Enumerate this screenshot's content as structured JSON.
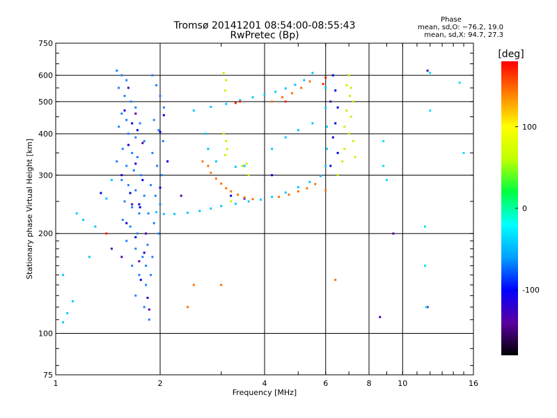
{
  "chart_data": {
    "type": "scatter",
    "title": "Tromsø 20141201 08:54:00-08:55:43",
    "subtitle": "RwPretec (Bp)",
    "xlabel": "Frequency [MHz]",
    "ylabel": "Stationary phase Virtual Height [km]",
    "x_scale": "log",
    "y_scale": "log",
    "xlim": [
      1,
      16
    ],
    "ylim": [
      75,
      750
    ],
    "x_ticks": [
      "1",
      "2",
      "4",
      "6",
      "8",
      "10",
      "16"
    ],
    "y_ticks": [
      "75",
      "100",
      "200",
      "300",
      "400",
      "500",
      "600",
      "750"
    ],
    "grid": true,
    "stats": {
      "heading": "Phase",
      "line_o": "mean, sd,O: −76.2, 19.0",
      "line_x": "mean, sd,X:  94.7, 27.3"
    },
    "colorbar": {
      "unit": "[deg]",
      "range": [
        -180,
        180
      ],
      "ticks": [
        "100",
        "0",
        "-100"
      ],
      "colors": [
        "#000000",
        "#5a00a0",
        "#0000ff",
        "#00a0ff",
        "#00ffff",
        "#00ff40",
        "#c0ff00",
        "#ffff00",
        "#ff8000",
        "#ff0000"
      ]
    },
    "series": [
      {
        "color": "#2080ff",
        "points": [
          [
            1.5,
            620
          ],
          [
            1.55,
            600
          ],
          [
            1.6,
            580
          ],
          [
            1.52,
            550
          ],
          [
            1.58,
            520
          ],
          [
            1.65,
            500
          ],
          [
            1.7,
            480
          ],
          [
            1.55,
            460
          ],
          [
            1.6,
            440
          ],
          [
            1.75,
            430
          ],
          [
            1.52,
            420
          ],
          [
            1.62,
            400
          ],
          [
            1.7,
            390
          ],
          [
            1.8,
            380
          ],
          [
            1.56,
            360
          ],
          [
            1.66,
            350
          ],
          [
            1.72,
            340
          ],
          [
            1.5,
            330
          ],
          [
            1.6,
            320
          ],
          [
            1.68,
            310
          ],
          [
            1.76,
            300
          ],
          [
            1.55,
            290
          ],
          [
            1.62,
            280
          ],
          [
            1.7,
            270
          ],
          [
            1.8,
            260
          ],
          [
            1.58,
            250
          ],
          [
            1.66,
            240
          ],
          [
            1.74,
            230
          ],
          [
            1.56,
            220
          ],
          [
            1.64,
            210
          ],
          [
            1.72,
            200
          ],
          [
            1.6,
            190
          ],
          [
            1.7,
            180
          ],
          [
            1.78,
            170
          ],
          [
            1.66,
            160
          ],
          [
            1.74,
            150
          ],
          [
            1.82,
            140
          ],
          [
            1.7,
            130
          ],
          [
            1.8,
            120
          ],
          [
            1.86,
            110
          ],
          [
            1.9,
            600
          ],
          [
            1.95,
            560
          ],
          [
            2.0,
            520
          ],
          [
            2.05,
            480
          ],
          [
            1.92,
            440
          ],
          [
            1.98,
            410
          ],
          [
            2.04,
            380
          ],
          [
            1.9,
            350
          ],
          [
            1.96,
            320
          ],
          [
            2.02,
            300
          ],
          [
            1.88,
            280
          ],
          [
            1.94,
            260
          ],
          [
            2.0,
            245
          ],
          [
            1.85,
            230
          ],
          [
            1.92,
            215
          ],
          [
            1.98,
            200
          ],
          [
            1.84,
            185
          ],
          [
            1.9,
            170
          ],
          [
            1.82,
            160
          ],
          [
            1.88,
            150
          ]
        ]
      },
      {
        "color": "#00c8ff",
        "points": [
          [
            1.95,
            232
          ],
          [
            2.05,
            229
          ],
          [
            2.2,
            229
          ],
          [
            2.4,
            231
          ],
          [
            2.6,
            234
          ],
          [
            2.8,
            238
          ],
          [
            3.0,
            242
          ],
          [
            3.3,
            246
          ],
          [
            3.6,
            250
          ],
          [
            3.9,
            253
          ],
          [
            4.2,
            258
          ],
          [
            4.6,
            266
          ],
          [
            5.0,
            276
          ],
          [
            5.4,
            286
          ],
          [
            5.8,
            298
          ],
          [
            6.0,
            320
          ],
          [
            6.05,
            360
          ],
          [
            6.05,
            420
          ],
          [
            6.0,
            480
          ],
          [
            6.0,
            550
          ],
          [
            2.5,
            470
          ],
          [
            2.8,
            482
          ],
          [
            3.1,
            492
          ],
          [
            3.4,
            505
          ],
          [
            3.7,
            515
          ],
          [
            4.0,
            525
          ],
          [
            4.3,
            535
          ],
          [
            4.6,
            548
          ],
          [
            4.9,
            562
          ],
          [
            5.2,
            580
          ],
          [
            5.5,
            610
          ],
          [
            2.7,
            400
          ],
          [
            2.75,
            360
          ],
          [
            2.9,
            330
          ],
          [
            3.3,
            318
          ],
          [
            3.5,
            320
          ],
          [
            4.2,
            360
          ],
          [
            4.6,
            390
          ],
          [
            5.0,
            410
          ],
          [
            5.5,
            430
          ],
          [
            1.05,
            108
          ],
          [
            1.08,
            115
          ],
          [
            1.12,
            125
          ],
          [
            1.05,
            150
          ],
          [
            1.15,
            230
          ],
          [
            1.2,
            220
          ],
          [
            1.3,
            210
          ],
          [
            1.25,
            170
          ],
          [
            1.4,
            255
          ],
          [
            1.45,
            290
          ]
        ]
      },
      {
        "color": "#0000e0",
        "points": [
          [
            1.58,
            470
          ],
          [
            1.66,
            430
          ],
          [
            1.72,
            410
          ],
          [
            1.62,
            370
          ],
          [
            1.7,
            325
          ],
          [
            1.78,
            290
          ],
          [
            1.64,
            265
          ],
          [
            1.74,
            245
          ],
          [
            1.6,
            215
          ],
          [
            1.7,
            195
          ],
          [
            1.8,
            175
          ],
          [
            1.76,
            145
          ],
          [
            1.84,
            128
          ],
          [
            2.05,
            455
          ],
          [
            2.0,
            405
          ],
          [
            2.1,
            330
          ],
          [
            2.0,
            275
          ],
          [
            6.3,
            600
          ],
          [
            6.4,
            540
          ],
          [
            6.5,
            480
          ],
          [
            6.4,
            430
          ],
          [
            6.3,
            390
          ],
          [
            6.5,
            350
          ],
          [
            6.2,
            320
          ],
          [
            3.2,
            260
          ],
          [
            3.5,
            255
          ],
          [
            4.2,
            300
          ],
          [
            1.35,
            265
          ],
          [
            1.55,
            300
          ],
          [
            1.75,
            240
          ]
        ]
      },
      {
        "color": "#c8f000",
        "points": [
          [
            3.05,
            610
          ],
          [
            3.1,
            580
          ],
          [
            3.08,
            540
          ],
          [
            3.05,
            400
          ],
          [
            3.1,
            380
          ],
          [
            3.12,
            360
          ],
          [
            3.08,
            345
          ],
          [
            3.45,
            320
          ],
          [
            3.55,
            325
          ],
          [
            6.5,
            300
          ],
          [
            6.7,
            330
          ],
          [
            6.8,
            360
          ],
          [
            7.0,
            400
          ],
          [
            7.1,
            450
          ],
          [
            7.2,
            500
          ],
          [
            7.1,
            550
          ],
          [
            7.0,
            600
          ],
          [
            6.9,
            470
          ],
          [
            6.8,
            420
          ],
          [
            7.2,
            380
          ],
          [
            7.3,
            340
          ],
          [
            6.9,
            560
          ],
          [
            3.2,
            250
          ],
          [
            3.6,
            300
          ],
          [
            7.05,
            520
          ]
        ]
      },
      {
        "color": "#ff7000",
        "points": [
          [
            2.9,
            293
          ],
          [
            3.0,
            283
          ],
          [
            3.1,
            274
          ],
          [
            3.2,
            268
          ],
          [
            3.35,
            262
          ],
          [
            3.5,
            257
          ],
          [
            3.7,
            254
          ],
          [
            2.8,
            305
          ],
          [
            2.75,
            320
          ],
          [
            4.2,
            500
          ],
          [
            4.5,
            515
          ],
          [
            4.8,
            530
          ],
          [
            5.1,
            550
          ],
          [
            5.4,
            575
          ],
          [
            4.4,
            258
          ],
          [
            4.7,
            262
          ],
          [
            5.0,
            268
          ],
          [
            5.3,
            274
          ],
          [
            5.6,
            282
          ],
          [
            2.65,
            330
          ],
          [
            2.5,
            140
          ],
          [
            2.4,
            120
          ],
          [
            3.0,
            140
          ],
          [
            6.4,
            145
          ],
          [
            6.0,
            270
          ]
        ]
      },
      {
        "color": "#5000a0",
        "points": [
          [
            1.62,
            550
          ],
          [
            1.7,
            460
          ],
          [
            1.78,
            375
          ],
          [
            1.66,
            245
          ],
          [
            1.82,
            200
          ],
          [
            1.74,
            165
          ],
          [
            1.86,
            118
          ],
          [
            8.6,
            112
          ],
          [
            9.4,
            200
          ],
          [
            11.8,
            120
          ],
          [
            11.8,
            620
          ],
          [
            1.45,
            180
          ],
          [
            2.3,
            260
          ],
          [
            6.2,
            500
          ],
          [
            1.55,
            170
          ]
        ]
      },
      {
        "color": "#ff2000",
        "points": [
          [
            3.4,
            500
          ],
          [
            5.9,
            565
          ],
          [
            6.0,
            590
          ],
          [
            3.3,
            495
          ],
          [
            4.6,
            500
          ],
          [
            1.4,
            200
          ]
        ]
      },
      {
        "color": "#00e0ff",
        "points": [
          [
            12.0,
            610
          ],
          [
            14.6,
            570
          ],
          [
            8.8,
            320
          ],
          [
            8.8,
            380
          ],
          [
            11.6,
            210
          ],
          [
            11.6,
            160
          ],
          [
            11.7,
            120
          ],
          [
            15.0,
            350
          ],
          [
            12.0,
            470
          ],
          [
            9.0,
            290
          ]
        ]
      }
    ]
  }
}
